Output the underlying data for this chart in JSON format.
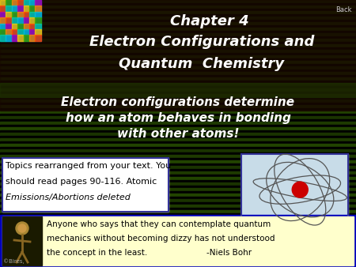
{
  "bg_color": "#1a0800",
  "title_line1": "Chapter 4",
  "title_line2": "Electron Configurations and",
  "title_line3": "Quantum  Chemistry",
  "title_color": "#ffffff",
  "title_fontsize": 13,
  "body_text_line1": "Electron configurations determine",
  "body_text_line2": "how an atom behaves in bonding",
  "body_text_line3": "with other atoms!",
  "body_color": "#ffffff",
  "body_fontsize": 11,
  "note_line1": "Topics rearranged from your text. You",
  "note_line2": "should read pages 90-116. Atomic",
  "note_line3": "Emissions/Abortions deleted",
  "note_color": "#000000",
  "note_bg": "#ffffff",
  "note_border": "#333399",
  "quote_line1": "Anyone who says that they can contemplate quantum",
  "quote_line2": "mechanics without becoming dizzy has not understood",
  "quote_line3": "the concept in the least.                       -Niels Bohr",
  "quote_color": "#000000",
  "quote_bg": "#ffffcc",
  "back_text": "Back",
  "back_color": "#cccccc",
  "border_color": "#0000bb",
  "atom_bg": "#c8dce8",
  "nucleus_color": "#cc0000",
  "orbit_color": "#555555"
}
